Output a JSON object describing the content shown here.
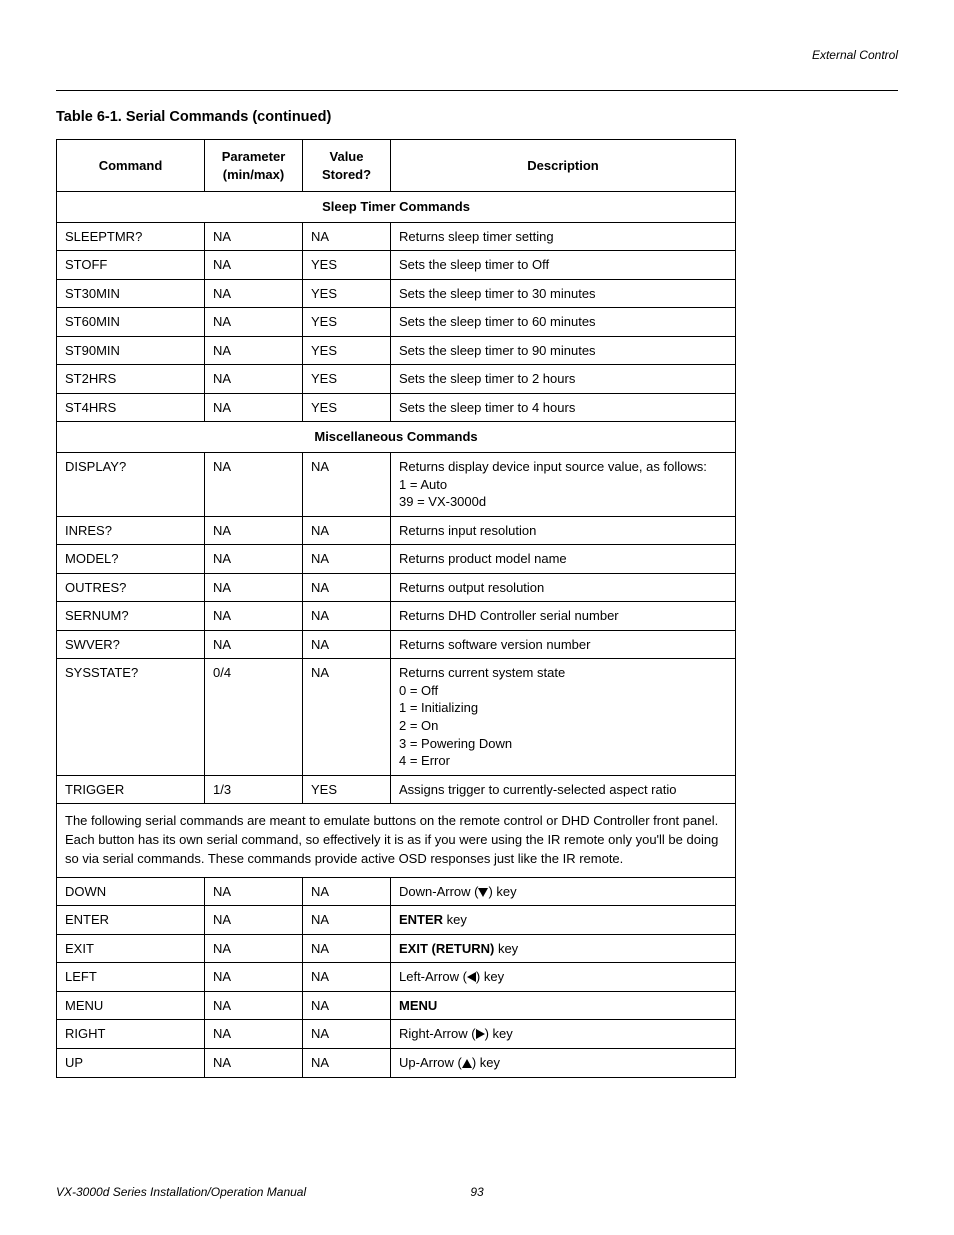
{
  "header": {
    "right_text": "External Control"
  },
  "title": "Table 6-1. Serial Commands (continued)",
  "columns": {
    "command": "Command",
    "param": "Parameter\n(min/max)",
    "stored": "Value\nStored?",
    "desc": "Description"
  },
  "section1": "Sleep Timer Commands",
  "sleep_rows": [
    {
      "cmd": "SLEEPTMR?",
      "param": "NA",
      "stored": "NA",
      "desc": "Returns sleep timer setting"
    },
    {
      "cmd": "STOFF",
      "param": "NA",
      "stored": "YES",
      "desc": "Sets the sleep timer to Off"
    },
    {
      "cmd": "ST30MIN",
      "param": "NA",
      "stored": "YES",
      "desc": "Sets the sleep timer to 30 minutes"
    },
    {
      "cmd": "ST60MIN",
      "param": "NA",
      "stored": "YES",
      "desc": "Sets the sleep timer to 60 minutes"
    },
    {
      "cmd": "ST90MIN",
      "param": "NA",
      "stored": "YES",
      "desc": "Sets the sleep timer to 90 minutes"
    },
    {
      "cmd": "ST2HRS",
      "param": "NA",
      "stored": "YES",
      "desc": "Sets the sleep timer to 2 hours"
    },
    {
      "cmd": "ST4HRS",
      "param": "NA",
      "stored": "YES",
      "desc": "Sets the sleep timer to 4 hours"
    }
  ],
  "section2": "Miscellaneous Commands",
  "misc_rows": [
    {
      "cmd": "DISPLAY?",
      "param": "NA",
      "stored": "NA",
      "desc": "Returns display device input source value, as follows:\n1 = Auto\n39 = VX-3000d"
    },
    {
      "cmd": "INRES?",
      "param": "NA",
      "stored": "NA",
      "desc": "Returns input resolution"
    },
    {
      "cmd": "MODEL?",
      "param": "NA",
      "stored": "NA",
      "desc": "Returns product model name"
    },
    {
      "cmd": "OUTRES?",
      "param": "NA",
      "stored": "NA",
      "desc": "Returns output resolution"
    },
    {
      "cmd": "SERNUM?",
      "param": "NA",
      "stored": "NA",
      "desc": "Returns DHD Controller serial number"
    },
    {
      "cmd": "SWVER?",
      "param": "NA",
      "stored": "NA",
      "desc": "Returns software version number"
    },
    {
      "cmd": "SYSSTATE?",
      "param": "0/4",
      "stored": "NA",
      "desc": "Returns current system state\n0 = Off\n1 = Initializing\n2 = On\n3 = Powering Down\n4 = Error"
    },
    {
      "cmd": "TRIGGER",
      "param": "1/3",
      "stored": "YES",
      "desc": "Assigns trigger to currently-selected aspect ratio"
    }
  ],
  "note_text": "The following serial commands are meant to emulate buttons on the remote control or DHD Controller front panel. Each button has its own serial command, so effectively it is as if you were using the IR remote only you'll be doing so via serial commands. These commands provide active OSD responses just like the IR remote.",
  "key_rows": [
    {
      "cmd": "DOWN",
      "param": "NA",
      "stored": "NA",
      "pre": "Down-Arrow (",
      "arrow": "down",
      "post": ") key"
    },
    {
      "cmd": "ENTER",
      "param": "NA",
      "stored": "NA",
      "bold": "ENTER",
      "post": " key"
    },
    {
      "cmd": "EXIT",
      "param": "NA",
      "stored": "NA",
      "bold": "EXIT (RETURN)",
      "post": " key"
    },
    {
      "cmd": "LEFT",
      "param": "NA",
      "stored": "NA",
      "pre": "Left-Arrow (",
      "arrow": "left",
      "post": ") key"
    },
    {
      "cmd": "MENU",
      "param": "NA",
      "stored": "NA",
      "bold": "MENU",
      "post": ""
    },
    {
      "cmd": "RIGHT",
      "param": "NA",
      "stored": "NA",
      "pre": "Right-Arrow (",
      "arrow": "right",
      "post": ") key"
    },
    {
      "cmd": "UP",
      "param": "NA",
      "stored": "NA",
      "pre": "Up-Arrow (",
      "arrow": "up",
      "post": ") key"
    }
  ],
  "footer": {
    "left": "VX-3000d Series Installation/Operation Manual",
    "page": "93"
  }
}
